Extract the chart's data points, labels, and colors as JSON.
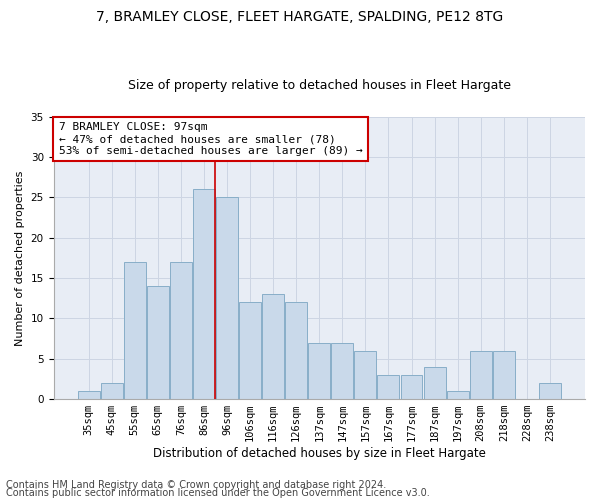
{
  "title1": "7, BRAMLEY CLOSE, FLEET HARGATE, SPALDING, PE12 8TG",
  "title2": "Size of property relative to detached houses in Fleet Hargate",
  "xlabel": "Distribution of detached houses by size in Fleet Hargate",
  "ylabel": "Number of detached properties",
  "categories": [
    "35sqm",
    "45sqm",
    "55sqm",
    "65sqm",
    "76sqm",
    "86sqm",
    "96sqm",
    "106sqm",
    "116sqm",
    "126sqm",
    "137sqm",
    "147sqm",
    "157sqm",
    "167sqm",
    "177sqm",
    "187sqm",
    "197sqm",
    "208sqm",
    "218sqm",
    "228sqm",
    "238sqm"
  ],
  "values": [
    1,
    2,
    17,
    14,
    17,
    26,
    25,
    12,
    13,
    12,
    7,
    7,
    6,
    3,
    3,
    4,
    1,
    6,
    6,
    0,
    2
  ],
  "bar_color": "#c9d9ea",
  "bar_edge_color": "#88aec8",
  "grid_color": "#cdd5e3",
  "vline_color": "#cc0000",
  "vline_x": 5.5,
  "annotation_text": "7 BRAMLEY CLOSE: 97sqm\n← 47% of detached houses are smaller (78)\n53% of semi-detached houses are larger (89) →",
  "annotation_box_facecolor": "#ffffff",
  "annotation_box_edgecolor": "#cc0000",
  "footer1": "Contains HM Land Registry data © Crown copyright and database right 2024.",
  "footer2": "Contains public sector information licensed under the Open Government Licence v3.0.",
  "ylim": [
    0,
    35
  ],
  "bg_color": "#e8edf5",
  "fig_bg": "#ffffff",
  "title1_fontsize": 10,
  "title2_fontsize": 9,
  "xlabel_fontsize": 8.5,
  "ylabel_fontsize": 8,
  "tick_fontsize": 7.5,
  "annotation_fontsize": 8,
  "footer_fontsize": 7
}
